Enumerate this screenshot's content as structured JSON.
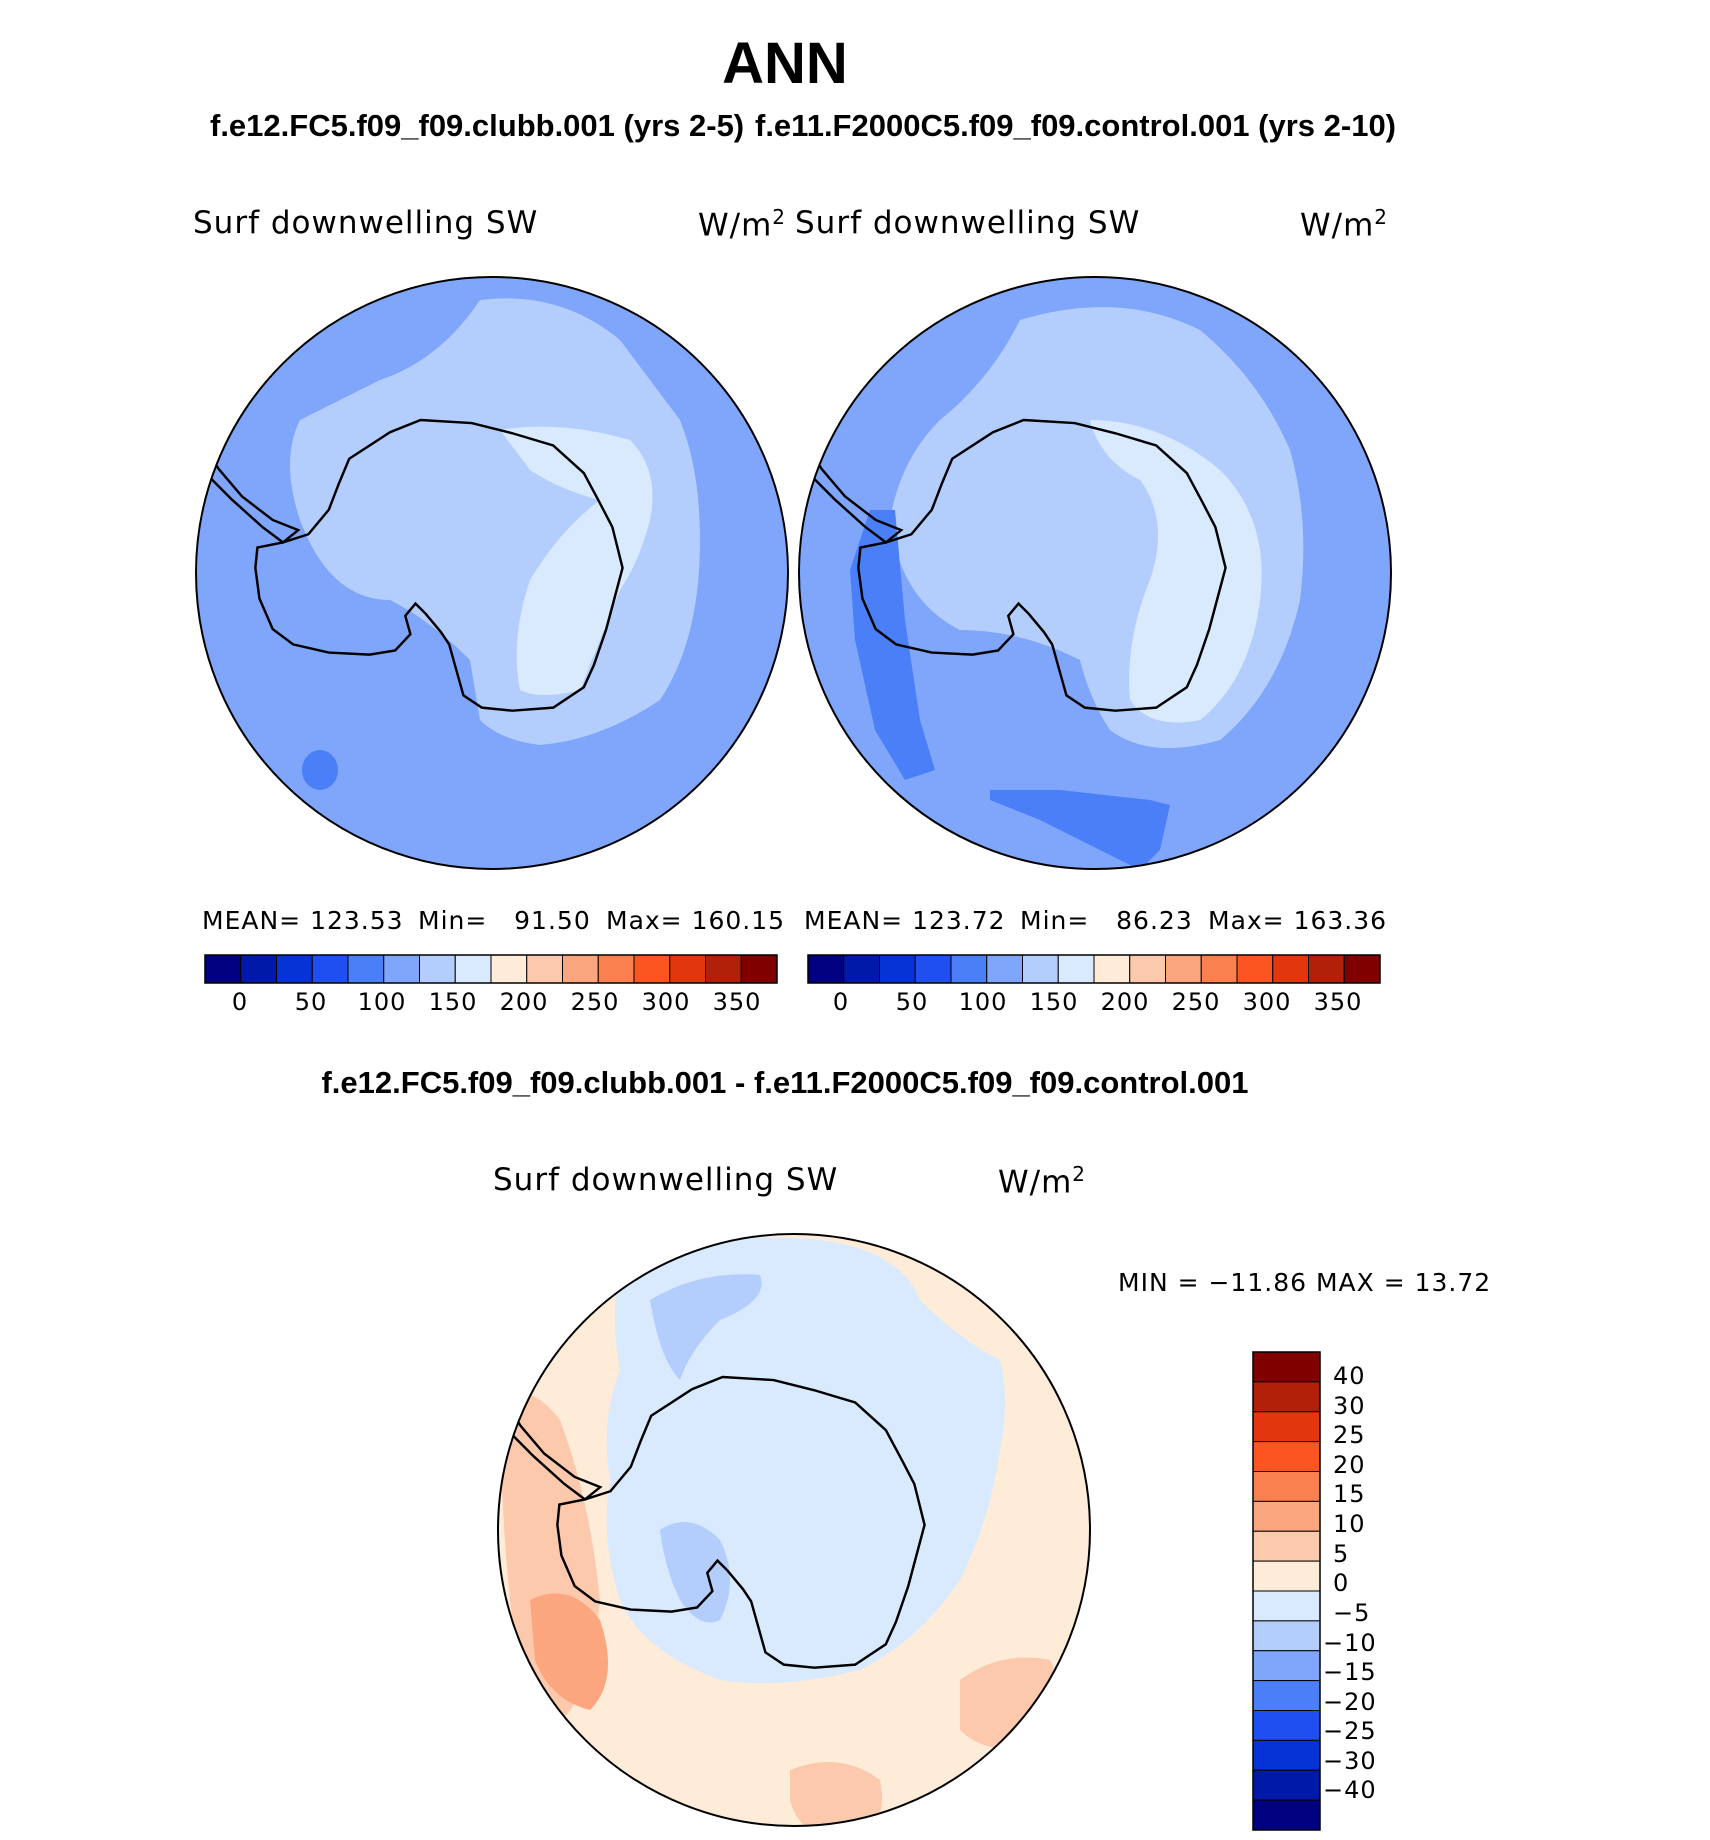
{
  "header": {
    "title": "ANN",
    "case1": "f.e12.FC5.f09_f09.clubb.001 (yrs 2-5)",
    "case2": "f.e11.F2000C5.f09_f09.control.001 (yrs 2-10)"
  },
  "panels": [
    {
      "label": "Surf downwelling SW",
      "units_base": "W/m",
      "units_exp": "2",
      "mean_label": "MEAN=",
      "mean": "123.53",
      "min_label": "Min=",
      "min": "91.50",
      "max_label": "Max=",
      "max": "160.15"
    },
    {
      "label": "Surf downwelling SW",
      "units_base": "W/m",
      "units_exp": "2",
      "mean_label": "MEAN=",
      "mean": "123.72",
      "min_label": "Min=",
      "min": "86.23",
      "max_label": "Max=",
      "max": "163.36"
    }
  ],
  "colorbar": {
    "ticks": [
      "0",
      "50",
      "100",
      "150",
      "200",
      "250",
      "300",
      "350"
    ],
    "colors": [
      "#000080",
      "#0019a8",
      "#0533d6",
      "#1f4ff0",
      "#4b7ff7",
      "#7fa6fb",
      "#b3cefd",
      "#d9eafe",
      "#feecd9",
      "#fdc9ad",
      "#fca680",
      "#fb8050",
      "#fd5522",
      "#e2370e",
      "#b3200a",
      "#800000"
    ]
  },
  "diff": {
    "title": "f.e12.FC5.f09_f09.clubb.001 - f.e11.F2000C5.f09_f09.control.001",
    "label": "Surf downwelling SW",
    "units_base": "W/m",
    "units_exp": "2",
    "minmax": "MIN = −11.86 MAX =   13.72",
    "levels": [
      "40",
      "30",
      "25",
      "20",
      "15",
      "10",
      "5",
      "0",
      "−5",
      "−10",
      "−15",
      "−20",
      "−25",
      "−30",
      "−40"
    ],
    "colors": [
      "#800000",
      "#b3200a",
      "#e2370e",
      "#fd5522",
      "#fb8050",
      "#fca680",
      "#fdc9ad",
      "#feecd9",
      "#d9eafe",
      "#b3cefd",
      "#7fa6fb",
      "#4b7ff7",
      "#1f4ff0",
      "#0533d6",
      "#0019a8",
      "#000080"
    ]
  },
  "colors": {
    "ocean_mid": "#7fa6fb",
    "ice_light": "#d9eafe",
    "ice_mid": "#b3cefd",
    "strong_blue": "#4b7ff7",
    "diff_pos_light": "#feecd9",
    "diff_pos_mid": "#fdc9ad",
    "diff_pos_strong": "#fca680"
  }
}
